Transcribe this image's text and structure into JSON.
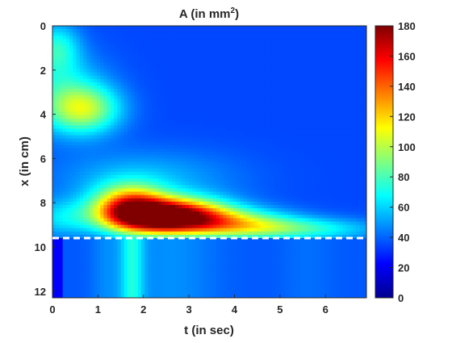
{
  "chart_data": {
    "type": "heatmap",
    "title": "A (in mm",
    "title_superscript": "2",
    "title_suffix": ")",
    "xlabel": "t (in sec)",
    "ylabel": "x (in cm)",
    "xlim": [
      0,
      6.9
    ],
    "ylim": [
      12.3,
      0
    ],
    "x_ticks": [
      0,
      1,
      2,
      3,
      4,
      5,
      6
    ],
    "y_ticks": [
      0,
      2,
      4,
      6,
      8,
      10,
      12
    ],
    "y_axis_reversed": true,
    "colormap": "jet",
    "colorbar": {
      "min": 0,
      "max": 180,
      "ticks": [
        0,
        20,
        40,
        60,
        80,
        100,
        120,
        140,
        160,
        180
      ]
    },
    "background_value": 35,
    "reference_line": {
      "x_position": 9.6,
      "style": "dashed",
      "color": "#ffffff"
    },
    "regions": [
      {
        "name": "upper-left-band",
        "t": 0.2,
        "x": 1.0,
        "value": 60
      },
      {
        "name": "upper-cyan-patch",
        "t": 0.8,
        "x": 3.8,
        "value": 85
      },
      {
        "name": "main-peak",
        "t": 2.5,
        "x": 8.8,
        "value": 175
      },
      {
        "name": "secondary-peak",
        "t": 2.0,
        "x": 7.8,
        "value": 150
      },
      {
        "name": "tail",
        "t": 5.0,
        "x": 9.0,
        "value": 60
      },
      {
        "name": "lower-stripe",
        "t": 1.7,
        "x": 11.0,
        "value": 65
      }
    ]
  }
}
